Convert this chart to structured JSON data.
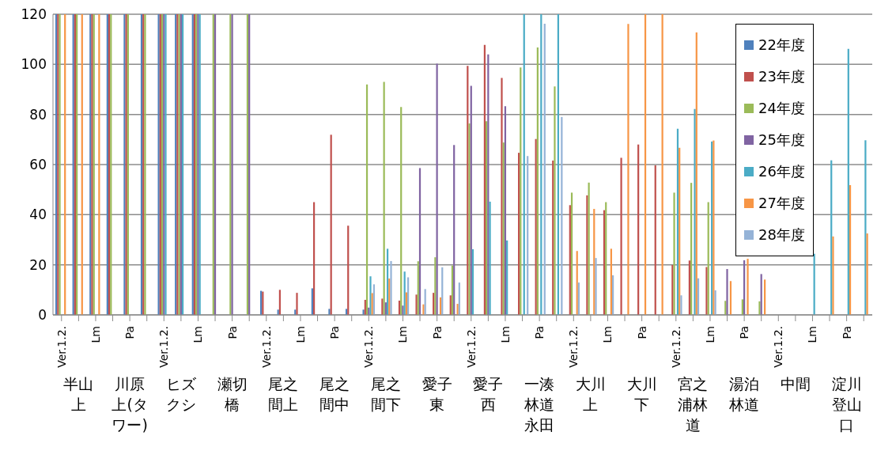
{
  "chart_data": {
    "type": "bar",
    "categories": [
      "Ver.1.2.",
      null,
      "Lm",
      null,
      "Pa",
      null,
      "Ver.1.2.",
      null,
      "Lm",
      null,
      "Pa",
      null,
      "Ver.1.2.",
      null,
      "Lm",
      null,
      "Pa",
      null,
      "Ver.1.2.",
      null,
      "Lm",
      null,
      "Pa",
      null,
      "Ver.1.2.",
      null,
      "Lm",
      null,
      "Pa",
      null,
      "Ver.1.2.",
      null,
      "Lm",
      null,
      "Pa",
      null,
      "Ver.1.2.",
      null,
      "Lm",
      null,
      "Pa",
      null,
      "Ver.1.2.",
      null,
      "Lm",
      null,
      "Pa",
      null
    ],
    "annotations": [
      "半山上",
      "川原上(タワー)",
      "ヒズクシ",
      "瀬切橋",
      "尾之間上",
      "尾之間中",
      "尾之間下",
      "愛子東",
      "愛子西",
      "一湊林道永田",
      "大川上",
      "大川下",
      "宮之浦林道",
      "湯泊林道",
      "中間",
      "淀川登山口"
    ],
    "series": [
      {
        "name": "22年度",
        "color": "#4f81bd",
        "values": [
          120,
          120,
          120,
          120,
          120,
          120,
          120,
          120,
          120,
          null,
          null,
          null,
          9.6,
          2.1,
          2.1,
          10.6,
          2.4,
          2.4,
          2.1,
          null,
          null,
          null,
          null,
          null,
          null,
          null,
          null,
          null,
          null,
          null,
          null,
          null,
          null,
          null,
          null,
          null,
          null,
          null,
          null,
          null,
          null,
          null,
          null,
          null,
          null,
          null,
          null,
          null
        ]
      },
      {
        "name": "23年度",
        "color": "#c0504d",
        "values": [
          120,
          120,
          120,
          120,
          120,
          120,
          120,
          120,
          120,
          null,
          null,
          null,
          9.3,
          10,
          8.8,
          45,
          71.9,
          35.6,
          6,
          6.5,
          5.7,
          8.1,
          8.8,
          7.8,
          99.4,
          107.8,
          94.6,
          64.7,
          70.2,
          61.6,
          43.8,
          47.7,
          41.8,
          62.7,
          68,
          59.7,
          19.9,
          21.7,
          19.1,
          null,
          null,
          null,
          null,
          null,
          null,
          null,
          null,
          null
        ]
      },
      {
        "name": "24年度",
        "color": "#9bbb59",
        "values": [
          120,
          120,
          120,
          120,
          120,
          120,
          120,
          120,
          120,
          120,
          120,
          120,
          null,
          null,
          null,
          null,
          null,
          null,
          92,
          93,
          83,
          21.4,
          23,
          19.7,
          76.4,
          77.3,
          68.8,
          98.8,
          106.7,
          91.2,
          48.8,
          52.8,
          45,
          null,
          null,
          null,
          48.8,
          52.7,
          45,
          5.6,
          6.2,
          5.4,
          null,
          null,
          null,
          null,
          null,
          null
        ]
      },
      {
        "name": "25年度",
        "color": "#8064a2",
        "values": [
          null,
          null,
          null,
          null,
          null,
          null,
          120,
          120,
          120,
          120,
          120,
          120,
          null,
          null,
          null,
          null,
          null,
          null,
          2.9,
          5,
          3.7,
          58.6,
          100.3,
          67.8,
          91.4,
          104,
          83.3,
          null,
          null,
          null,
          null,
          null,
          null,
          null,
          null,
          null,
          null,
          null,
          null,
          18.3,
          21.8,
          16.3,
          null,
          null,
          null,
          null,
          null,
          null
        ]
      },
      {
        "name": "26年度",
        "color": "#4bacc6",
        "values": [
          null,
          null,
          null,
          null,
          null,
          null,
          120,
          120,
          120,
          null,
          null,
          null,
          null,
          null,
          null,
          null,
          null,
          null,
          15.4,
          26.4,
          17.3,
          null,
          null,
          null,
          26.2,
          45.2,
          29.7,
          120,
          120,
          120,
          null,
          null,
          null,
          null,
          null,
          null,
          74.3,
          82.2,
          69.2,
          null,
          null,
          null,
          null,
          null,
          24.4,
          61.7,
          106.2,
          69.7
        ]
      },
      {
        "name": "27年度",
        "color": "#f79646",
        "values": [
          120,
          120,
          120,
          null,
          null,
          null,
          null,
          null,
          null,
          null,
          null,
          null,
          null,
          null,
          null,
          null,
          null,
          null,
          8.7,
          14.5,
          9,
          4.2,
          7,
          4.4,
          null,
          null,
          null,
          null,
          null,
          null,
          25.5,
          42.3,
          26.4,
          116.1,
          120,
          120,
          66.7,
          112.7,
          69.6,
          13.5,
          22.4,
          14.1,
          null,
          null,
          null,
          31.3,
          51.8,
          32.5
        ]
      },
      {
        "name": "28年度",
        "color": "#95b3d7",
        "values": [
          null,
          null,
          null,
          null,
          null,
          null,
          null,
          null,
          null,
          null,
          null,
          null,
          null,
          null,
          null,
          null,
          null,
          null,
          12.2,
          21.5,
          15,
          10.3,
          19,
          12.9,
          null,
          null,
          null,
          63.4,
          116.2,
          79,
          12.9,
          22.7,
          15.8,
          null,
          null,
          null,
          7.8,
          14.6,
          9.8,
          null,
          null,
          null,
          null,
          null,
          null,
          null,
          null,
          null
        ]
      }
    ],
    "ylim": [
      0,
      120
    ],
    "yticks": [
      0,
      20,
      40,
      60,
      80,
      100,
      120
    ],
    "grid": "y",
    "legend": "top right"
  }
}
